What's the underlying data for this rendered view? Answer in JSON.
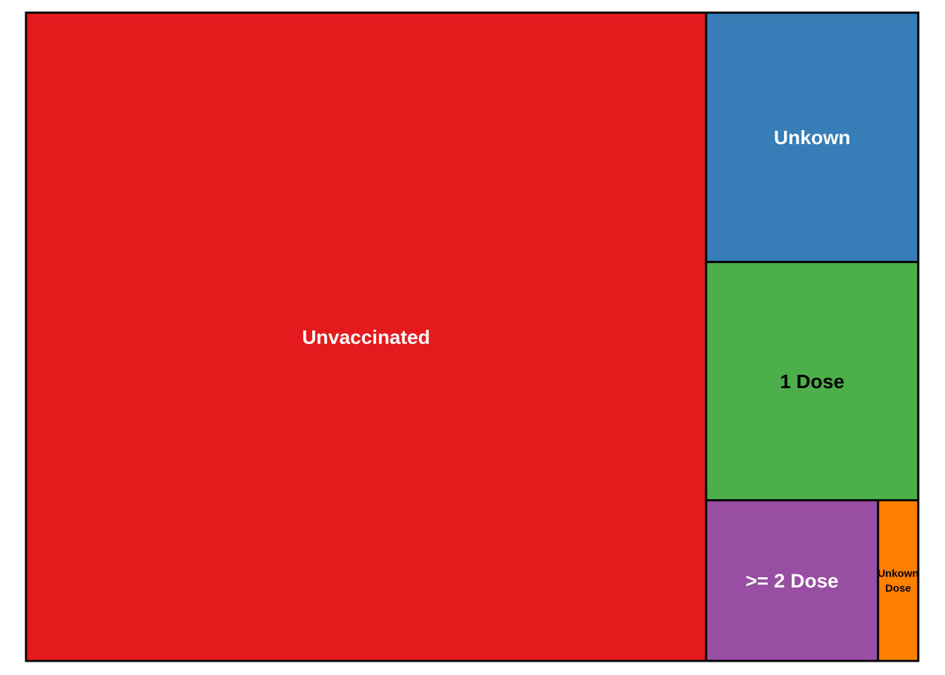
{
  "chart_data": {
    "type": "treemap",
    "title": "",
    "tiles": [
      {
        "label": "Unvaccinated",
        "value": 75.0,
        "color": "#E41A1C",
        "text_color": "#FFFFFF"
      },
      {
        "label": "Unkown",
        "value": 9.0,
        "color": "#377EB8",
        "text_color": "#FFFFFF"
      },
      {
        "label": "1 Dose",
        "value": 8.6,
        "color": "#4DAF4A",
        "text_color": "#000000"
      },
      {
        "label": ">= 2 Dose",
        "value": 4.7,
        "color": "#984EA3",
        "text_color": "#FFFFFF"
      },
      {
        "label": "Unkown Dose",
        "value": 1.1,
        "color": "#FF7F00",
        "text_color": "#000000"
      }
    ]
  }
}
